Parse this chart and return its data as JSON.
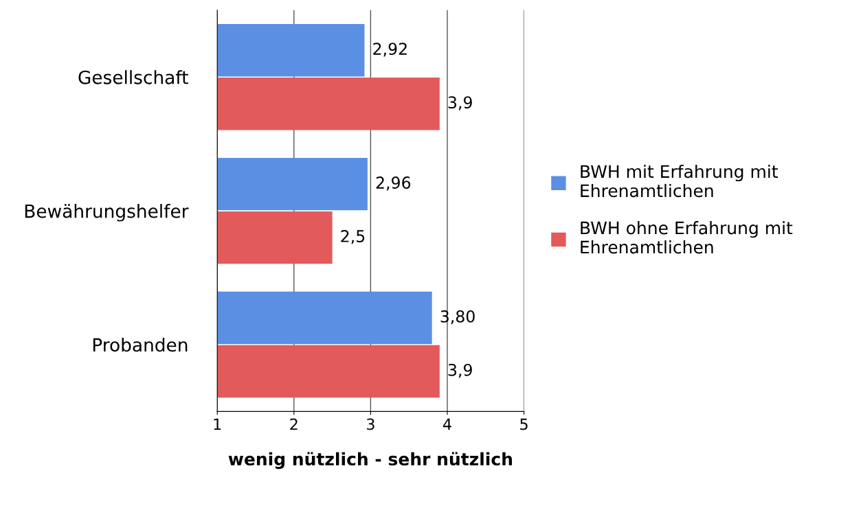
{
  "chart_data": {
    "type": "bar",
    "orientation": "horizontal",
    "xlabel": "wenig nützlich - sehr nützlich",
    "categories": [
      "Gesellschaft",
      "Bewährungshelfer",
      "Probanden"
    ],
    "series": [
      {
        "name": "BWH mit Erfahrung mit Ehrenamtlichen",
        "color": "#5a8fe3",
        "values": [
          2.92,
          2.96,
          3.8
        ],
        "value_labels": [
          "2,92",
          "2,96",
          "3,80"
        ]
      },
      {
        "name": "BWH ohne Erfahrung mit Ehrenamtlichen",
        "color": "#e35a5a",
        "values": [
          3.9,
          2.5,
          3.9
        ],
        "value_labels": [
          "3,9",
          "2,5",
          "3,9"
        ]
      }
    ],
    "xlim": [
      1,
      5
    ],
    "xticks": [
      1,
      2,
      3,
      4,
      5
    ],
    "grid": "x",
    "legend": "right"
  }
}
